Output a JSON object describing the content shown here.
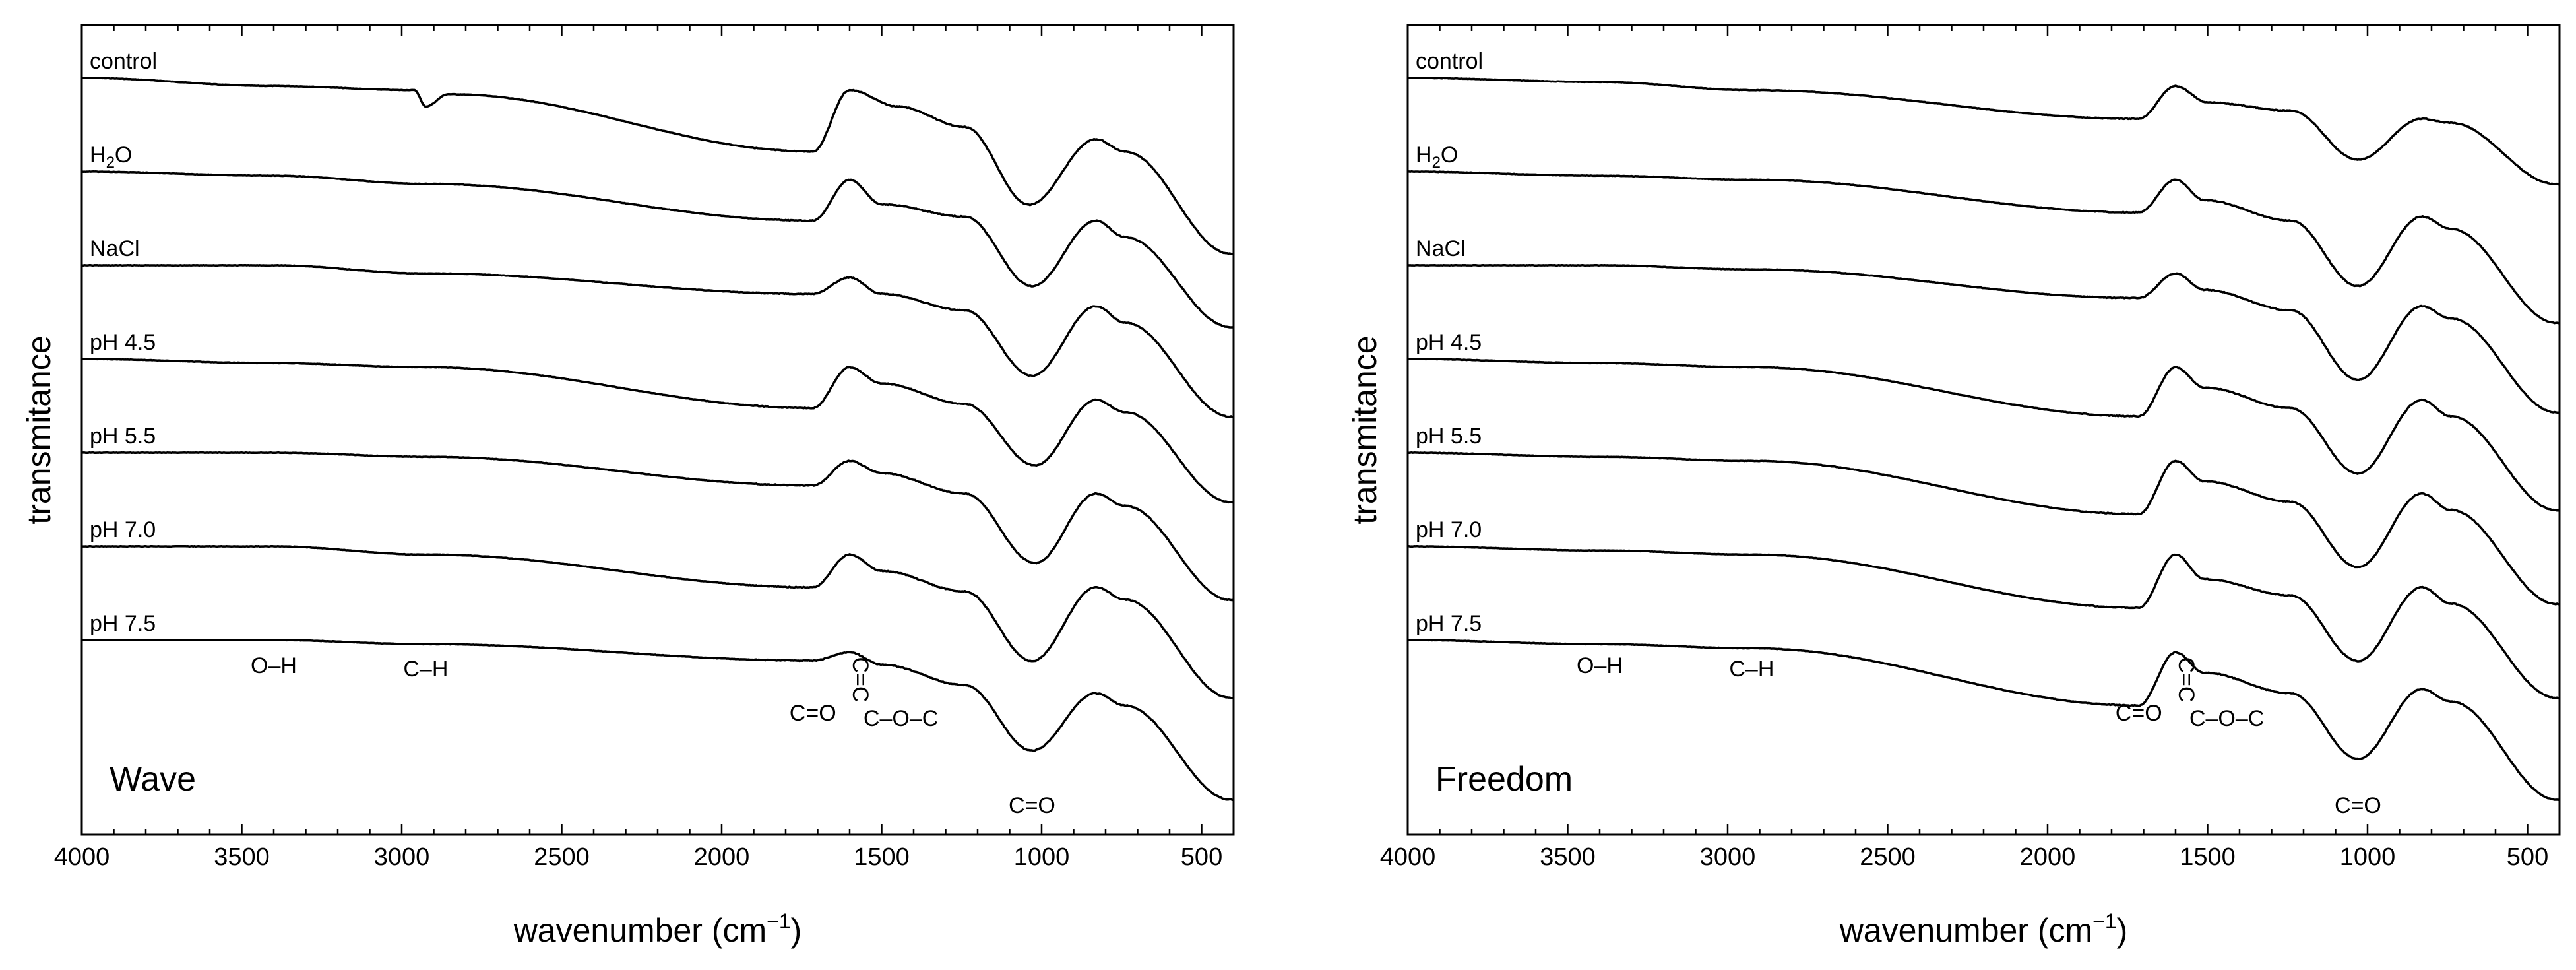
{
  "chart_data": [
    {
      "type": "line",
      "panel_label": "Wave",
      "xlabel": "wavenumber (cm⁻¹)",
      "ylabel": "transmitance",
      "xlim": [
        4000,
        400
      ],
      "x_reversed": true,
      "xticks": [
        4000,
        3500,
        3000,
        2500,
        2000,
        1500,
        1000,
        500
      ],
      "y_axis_values": "none",
      "legend": "none",
      "series": [
        {
          "name": "control",
          "features": [
            [
              4000,
              0
            ],
            [
              3400,
              -0.2
            ],
            [
              2960,
              -0.3
            ],
            [
              2925,
              -0.7
            ],
            [
              2855,
              -0.4
            ],
            [
              1715,
              -1.8
            ],
            [
              1600,
              -0.3
            ],
            [
              1450,
              -0.7
            ],
            [
              1240,
              -1.2
            ],
            [
              1040,
              -3.1
            ],
            [
              830,
              -1.5
            ],
            [
              740,
              -1.8
            ],
            [
              410,
              -4.3
            ]
          ]
        },
        {
          "name": "H2O",
          "features": [
            [
              4000,
              0
            ],
            [
              3400,
              -0.1
            ],
            [
              2925,
              -0.3
            ],
            [
              1715,
              -1.2
            ],
            [
              1600,
              -0.2
            ],
            [
              1500,
              -0.8
            ],
            [
              1240,
              -1.1
            ],
            [
              1030,
              -2.8
            ],
            [
              830,
              -1.2
            ],
            [
              740,
              -1.6
            ],
            [
              410,
              -3.8
            ]
          ]
        },
        {
          "name": "NaCl",
          "features": [
            [
              4000,
              0
            ],
            [
              3400,
              0
            ],
            [
              2925,
              -0.2
            ],
            [
              1715,
              -0.7
            ],
            [
              1600,
              -0.3
            ],
            [
              1500,
              -0.7
            ],
            [
              1240,
              -1.1
            ],
            [
              1030,
              -2.7
            ],
            [
              830,
              -1.0
            ],
            [
              740,
              -1.4
            ],
            [
              410,
              -3.7
            ]
          ]
        },
        {
          "name": "pH 4.5",
          "features": [
            [
              4000,
              0
            ],
            [
              3400,
              -0.1
            ],
            [
              2925,
              -0.2
            ],
            [
              1715,
              -1.2
            ],
            [
              1600,
              -0.2
            ],
            [
              1500,
              -0.6
            ],
            [
              1240,
              -1.1
            ],
            [
              1020,
              -2.6
            ],
            [
              830,
              -1.0
            ],
            [
              740,
              -1.3
            ],
            [
              410,
              -3.5
            ]
          ]
        },
        {
          "name": "pH 5.5",
          "features": [
            [
              4000,
              0
            ],
            [
              3400,
              0
            ],
            [
              2925,
              -0.1
            ],
            [
              1715,
              -0.8
            ],
            [
              1600,
              -0.2
            ],
            [
              1500,
              -0.5
            ],
            [
              1240,
              -1.0
            ],
            [
              1020,
              -2.7
            ],
            [
              830,
              -1.0
            ],
            [
              740,
              -1.3
            ],
            [
              410,
              -3.6
            ]
          ]
        },
        {
          "name": "pH 7.0",
          "features": [
            [
              4000,
              0
            ],
            [
              3400,
              0
            ],
            [
              2925,
              -0.2
            ],
            [
              1715,
              -1.0
            ],
            [
              1600,
              -0.2
            ],
            [
              1500,
              -0.6
            ],
            [
              1240,
              -1.1
            ],
            [
              1030,
              -2.8
            ],
            [
              830,
              -1.0
            ],
            [
              740,
              -1.3
            ],
            [
              410,
              -3.7
            ]
          ]
        },
        {
          "name": "pH 7.5",
          "features": [
            [
              4000,
              0
            ],
            [
              3400,
              0
            ],
            [
              2925,
              -0.1
            ],
            [
              1715,
              -0.5
            ],
            [
              1600,
              -0.3
            ],
            [
              1500,
              -0.6
            ],
            [
              1240,
              -1.1
            ],
            [
              1030,
              -2.7
            ],
            [
              830,
              -1.3
            ],
            [
              740,
              -1.6
            ],
            [
              410,
              -3.9
            ]
          ]
        }
      ],
      "annotations": [
        {
          "text": "O–H",
          "x": 3400
        },
        {
          "text": "C–H",
          "x": 2925
        },
        {
          "text": "C=O",
          "x": 1715
        },
        {
          "text": "C=C",
          "x": 1590,
          "rotated": true
        },
        {
          "text": "C–O–C",
          "x": 1440
        },
        {
          "text": "C=O",
          "x": 1030
        }
      ]
    },
    {
      "type": "line",
      "panel_label": "Freedom",
      "xlabel": "wavenumber (cm⁻¹)",
      "ylabel": "transmitance",
      "xlim": [
        4000,
        400
      ],
      "x_reversed": true,
      "xticks": [
        4000,
        3500,
        3000,
        2500,
        2000,
        1500,
        1000,
        500
      ],
      "y_axis_values": "none",
      "legend": "none",
      "series": [
        {
          "name": "control",
          "features": [
            [
              4000,
              0
            ],
            [
              3400,
              -0.1
            ],
            [
              2925,
              -0.3
            ],
            [
              1715,
              -1.0
            ],
            [
              1600,
              -0.2
            ],
            [
              1500,
              -0.6
            ],
            [
              1240,
              -0.8
            ],
            [
              1030,
              -2.0
            ],
            [
              830,
              -1.0
            ],
            [
              740,
              -1.1
            ],
            [
              410,
              -2.6
            ]
          ]
        },
        {
          "name": "H2O",
          "features": [
            [
              4000,
              0
            ],
            [
              3400,
              -0.1
            ],
            [
              2925,
              -0.2
            ],
            [
              1715,
              -1.0
            ],
            [
              1600,
              -0.2
            ],
            [
              1510,
              -0.7
            ],
            [
              1240,
              -1.2
            ],
            [
              1030,
              -2.8
            ],
            [
              830,
              -1.1
            ],
            [
              740,
              -1.4
            ],
            [
              410,
              -3.7
            ]
          ]
        },
        {
          "name": "NaCl",
          "features": [
            [
              4000,
              0
            ],
            [
              3400,
              0
            ],
            [
              2925,
              -0.1
            ],
            [
              1715,
              -0.8
            ],
            [
              1600,
              -0.2
            ],
            [
              1510,
              -0.6
            ],
            [
              1240,
              -1.1
            ],
            [
              1030,
              -2.8
            ],
            [
              830,
              -1.0
            ],
            [
              740,
              -1.3
            ],
            [
              410,
              -3.6
            ]
          ]
        },
        {
          "name": "pH 4.5",
          "features": [
            [
              4000,
              0
            ],
            [
              3400,
              -0.1
            ],
            [
              2925,
              -0.2
            ],
            [
              1715,
              -1.4
            ],
            [
              1600,
              -0.2
            ],
            [
              1510,
              -0.7
            ],
            [
              1240,
              -1.2
            ],
            [
              1030,
              -2.8
            ],
            [
              830,
              -1.0
            ],
            [
              740,
              -1.4
            ],
            [
              410,
              -3.7
            ]
          ]
        },
        {
          "name": "pH 5.5",
          "features": [
            [
              4000,
              0
            ],
            [
              3400,
              -0.1
            ],
            [
              2925,
              -0.2
            ],
            [
              1715,
              -1.5
            ],
            [
              1600,
              -0.2
            ],
            [
              1510,
              -0.7
            ],
            [
              1240,
              -1.2
            ],
            [
              1030,
              -2.8
            ],
            [
              830,
              -1.0
            ],
            [
              740,
              -1.4
            ],
            [
              410,
              -3.7
            ]
          ]
        },
        {
          "name": "pH 7.0",
          "features": [
            [
              4000,
              0
            ],
            [
              3400,
              -0.1
            ],
            [
              2925,
              -0.2
            ],
            [
              1715,
              -1.5
            ],
            [
              1600,
              -0.2
            ],
            [
              1510,
              -0.8
            ],
            [
              1240,
              -1.2
            ],
            [
              1030,
              -2.8
            ],
            [
              830,
              -1.0
            ],
            [
              740,
              -1.4
            ],
            [
              410,
              -3.7
            ]
          ]
        },
        {
          "name": "pH 7.5",
          "features": [
            [
              4000,
              0
            ],
            [
              3400,
              -0.1
            ],
            [
              2925,
              -0.2
            ],
            [
              1715,
              -1.6
            ],
            [
              1600,
              -0.3
            ],
            [
              1510,
              -0.8
            ],
            [
              1240,
              -1.3
            ],
            [
              1030,
              -2.9
            ],
            [
              830,
              -1.2
            ],
            [
              740,
              -1.5
            ],
            [
              410,
              -3.9
            ]
          ]
        }
      ],
      "annotations": [
        {
          "text": "O–H",
          "x": 3400
        },
        {
          "text": "C–H",
          "x": 2925
        },
        {
          "text": "C=O",
          "x": 1715
        },
        {
          "text": "C=C",
          "x": 1590,
          "rotated": true
        },
        {
          "text": "C–O–C",
          "x": 1440
        },
        {
          "text": "C=O",
          "x": 1030
        }
      ]
    }
  ]
}
